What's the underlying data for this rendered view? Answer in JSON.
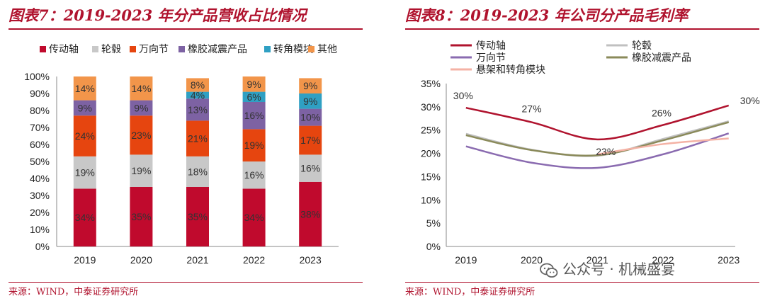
{
  "left_panel": {
    "title": "图表7：2019-2023 年分产品营收占比情况",
    "source": "来源：WIND，中泰证券研究所"
  },
  "right_panel": {
    "title": "图表8：2019-2023 年公司分产品毛利率",
    "source": "来源：WIND，中泰证券研究所"
  },
  "watermark": {
    "text": "公众号 · 机械盛宴",
    "icon": "wechat-icon"
  },
  "chart_data": [
    {
      "type": "bar",
      "stacked": true,
      "categories": [
        "2019",
        "2020",
        "2021",
        "2022",
        "2023"
      ],
      "ylim": [
        0,
        100
      ],
      "y_ticks": [
        "0%",
        "10%",
        "20%",
        "30%",
        "40%",
        "50%",
        "60%",
        "70%",
        "80%",
        "90%",
        "100%"
      ],
      "legend_position": "top",
      "grid": false,
      "series": [
        {
          "name": "传动轴",
          "color": "#c00a2d",
          "values": [
            34,
            35,
            35,
            34,
            38
          ],
          "labels": [
            "34%",
            "35%",
            "35%",
            "34%",
            "38%"
          ]
        },
        {
          "name": "轮毂",
          "color": "#c8c8c8",
          "values": [
            19,
            19,
            18,
            16,
            16
          ],
          "labels": [
            "19%",
            "19%",
            "18%",
            "16%",
            "16%"
          ]
        },
        {
          "name": "万向节",
          "color": "#e6450f",
          "values": [
            24,
            23,
            21,
            19,
            17
          ],
          "labels": [
            "24%",
            "23%",
            "21%",
            "19%",
            "17%"
          ]
        },
        {
          "name": "橡胶减震产品",
          "color": "#7d62a3",
          "values": [
            9,
            9,
            13,
            16,
            10
          ],
          "labels": [
            "9%",
            "9%",
            "13%",
            "16%",
            "10%"
          ]
        },
        {
          "name": "转角模块",
          "color": "#2fa0c3",
          "values": [
            0,
            0,
            4,
            6,
            9
          ],
          "labels": [
            "",
            "",
            "4%",
            "6%",
            "9%"
          ]
        },
        {
          "name": "其他",
          "color": "#f2954a",
          "values": [
            14,
            14,
            8,
            9,
            9
          ],
          "labels": [
            "14%",
            "14%",
            "8%",
            "9%",
            "9%"
          ]
        }
      ]
    },
    {
      "type": "line",
      "categories": [
        "2019",
        "2020",
        "2021",
        "2022",
        "2023"
      ],
      "ylim": [
        0,
        35
      ],
      "y_ticks": [
        "0%",
        "5%",
        "10%",
        "15%",
        "20%",
        "25%",
        "30%",
        "35%"
      ],
      "legend_position": "top",
      "grid": false,
      "series": [
        {
          "name": "传动轴",
          "color": "#b0132e",
          "values": [
            29.8,
            26.7,
            23.0,
            26.1,
            30.3
          ],
          "labels": [
            "30%",
            "27%",
            "23%",
            "26%",
            "30%"
          ]
        },
        {
          "name": "轮毂",
          "color": "#c0c0c0",
          "values": [
            24.2,
            20.8,
            19.5,
            23.1,
            26.9
          ]
        },
        {
          "name": "万向节",
          "color": "#8a6bb0",
          "values": [
            21.5,
            18.0,
            16.9,
            19.8,
            24.3
          ]
        },
        {
          "name": "橡胶减震产品",
          "color": "#8a8a5a",
          "values": [
            23.9,
            20.7,
            19.6,
            22.8,
            26.7
          ]
        },
        {
          "name": "悬架和转角模块",
          "color": "#f4b2a5",
          "values": [
            null,
            null,
            19.8,
            22.0,
            23.2
          ]
        }
      ]
    }
  ]
}
